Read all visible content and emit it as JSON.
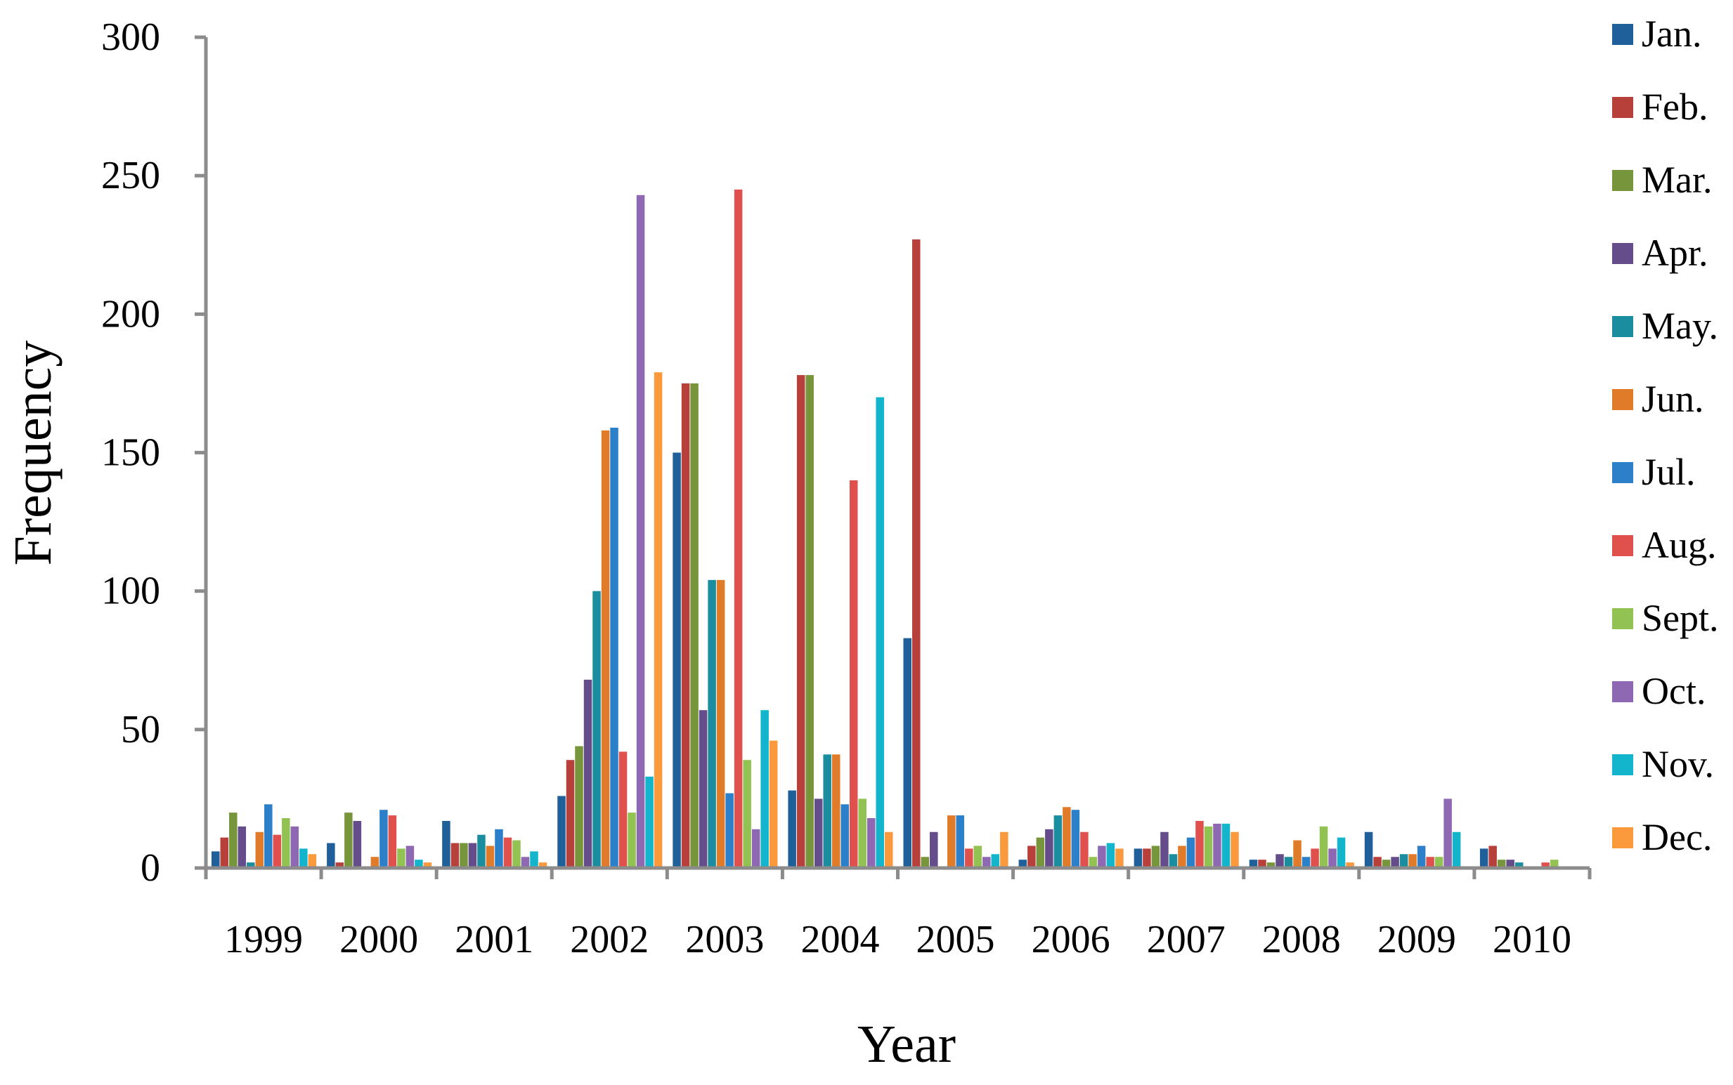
{
  "chart_data": {
    "type": "bar",
    "title": "",
    "xlabel": "Year",
    "ylabel": "Frequency",
    "ylim": [
      0,
      300
    ],
    "yticks": [
      "0",
      "50",
      "100",
      "150",
      "200",
      "250",
      "300"
    ],
    "grid": false,
    "legend_position": "right",
    "categories": [
      "1999",
      "2000",
      "2001",
      "2002",
      "2003",
      "2004",
      "2005",
      "2006",
      "2007",
      "2008",
      "2009",
      "2010"
    ],
    "series": [
      {
        "name": "Jan.",
        "color": "#1f5f9a",
        "values": [
          6,
          9,
          17,
          26,
          150,
          28,
          83,
          3,
          7,
          3,
          13,
          7
        ]
      },
      {
        "name": "Feb.",
        "color": "#b8403a",
        "values": [
          11,
          2,
          9,
          39,
          175,
          178,
          227,
          8,
          7,
          3,
          4,
          8
        ]
      },
      {
        "name": "Mar.",
        "color": "#77963c",
        "values": [
          20,
          20,
          9,
          44,
          175,
          178,
          4,
          11,
          8,
          2,
          3,
          3
        ]
      },
      {
        "name": "Apr.",
        "color": "#654c8a",
        "values": [
          15,
          17,
          9,
          68,
          57,
          25,
          13,
          14,
          13,
          5,
          4,
          3
        ]
      },
      {
        "name": "May.",
        "color": "#1a8e9e",
        "values": [
          2,
          0,
          12,
          100,
          104,
          41,
          0,
          19,
          5,
          4,
          5,
          2
        ]
      },
      {
        "name": "Jun.",
        "color": "#e07b2a",
        "values": [
          13,
          4,
          8,
          158,
          104,
          41,
          19,
          22,
          8,
          10,
          5,
          0
        ]
      },
      {
        "name": "Jul.",
        "color": "#2c7fc9",
        "values": [
          23,
          21,
          14,
          159,
          27,
          23,
          19,
          21,
          11,
          4,
          8,
          0
        ]
      },
      {
        "name": "Aug.",
        "color": "#e0504d",
        "values": [
          12,
          19,
          11,
          42,
          245,
          140,
          7,
          13,
          17,
          7,
          4,
          2
        ]
      },
      {
        "name": "Sept.",
        "color": "#92c251",
        "values": [
          18,
          7,
          10,
          20,
          39,
          25,
          8,
          4,
          15,
          15,
          4,
          3
        ]
      },
      {
        "name": "Oct.",
        "color": "#8f68b3",
        "values": [
          15,
          8,
          4,
          243,
          14,
          18,
          4,
          8,
          16,
          7,
          25,
          0
        ]
      },
      {
        "name": "Nov.",
        "color": "#12b5cc",
        "values": [
          7,
          3,
          6,
          33,
          57,
          170,
          5,
          9,
          16,
          11,
          13,
          0
        ]
      },
      {
        "name": "Dec.",
        "color": "#fa9a3c",
        "values": [
          5,
          2,
          2,
          179,
          46,
          13,
          13,
          7,
          13,
          2,
          0,
          0
        ]
      }
    ]
  }
}
